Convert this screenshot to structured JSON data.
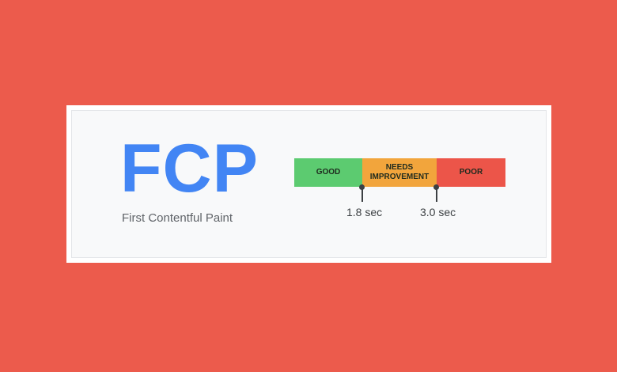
{
  "metric": {
    "abbr": "FCP",
    "name": "First Contentful Paint"
  },
  "ranges": [
    {
      "label": "GOOD",
      "color": "#5ccb70"
    },
    {
      "label": "NEEDS IMPROVEMENT",
      "line1": "NEEDS",
      "line2": "IMPROVEMENT",
      "color": "#f2a53c"
    },
    {
      "label": "POOR",
      "color": "#ec5549"
    }
  ],
  "thresholds": [
    {
      "label": "1.8 sec",
      "value": 1.8
    },
    {
      "label": "3.0 sec",
      "value": 3.0
    }
  ],
  "colors": {
    "background": "#ec5b4c",
    "title": "#4285f4"
  }
}
